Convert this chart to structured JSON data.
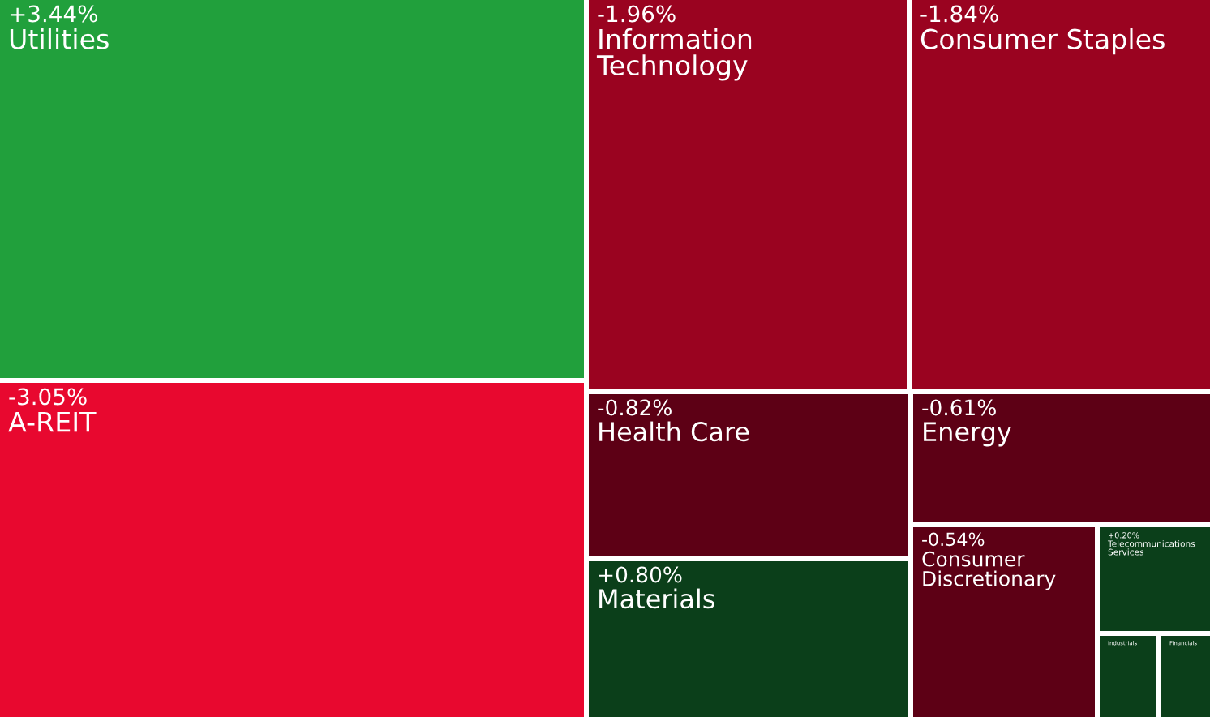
{
  "chart_data": {
    "type": "other",
    "categories": [
      "Utilities",
      "A-REIT",
      "Information Technology",
      "Consumer Staples",
      "Health Care",
      "Energy",
      "Materials",
      "Consumer Discretionary",
      "Telecommunications Services",
      "Industrials",
      "Financials"
    ],
    "values": [
      3.44,
      -3.05,
      -1.96,
      -1.84,
      -0.82,
      -0.61,
      0.8,
      -0.54,
      0.2,
      null,
      null
    ],
    "value_labels": [
      "+3.44%",
      "-3.05%",
      "-1.96%",
      "-1.84%",
      "-0.82%",
      "-0.61%",
      "+0.80%",
      "-0.54%",
      "+0.20%",
      null,
      null
    ]
  }
}
